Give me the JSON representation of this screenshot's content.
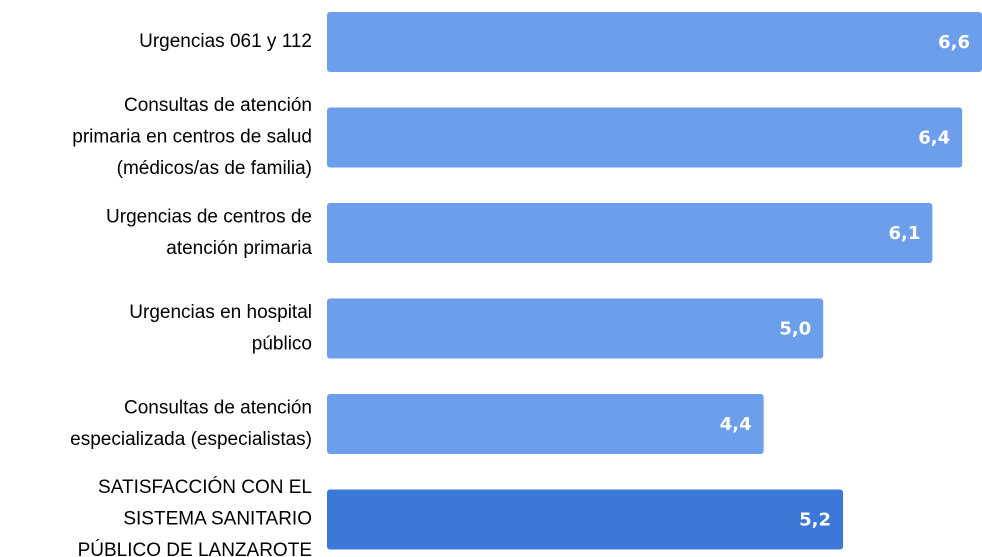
{
  "chart_data": {
    "type": "bar",
    "orientation": "horizontal",
    "categories": [
      "Urgencias 061 y 112",
      "Consultas de atención\nprimaria en centros de salud\n(médicos/as de familia)",
      "Urgencias de centros de\natención primaria",
      "Urgencias en hospital\npúblico",
      "Consultas de atención\nespecializada (especialistas)",
      "SATISFACCIÓN CON EL\nSISTEMA SANITARIO\nPÚBLICO DE LANZAROTE"
    ],
    "values": [
      6.6,
      6.4,
      6.1,
      5.0,
      4.4,
      5.2
    ],
    "value_labels": [
      "6,6",
      "6,4",
      "6,1",
      "5,0",
      "4,4",
      "5,2"
    ],
    "colors": [
      "#6d9eeb",
      "#6d9eeb",
      "#6d9eeb",
      "#6d9eeb",
      "#6d9eeb",
      "#3c78d8"
    ]
  }
}
